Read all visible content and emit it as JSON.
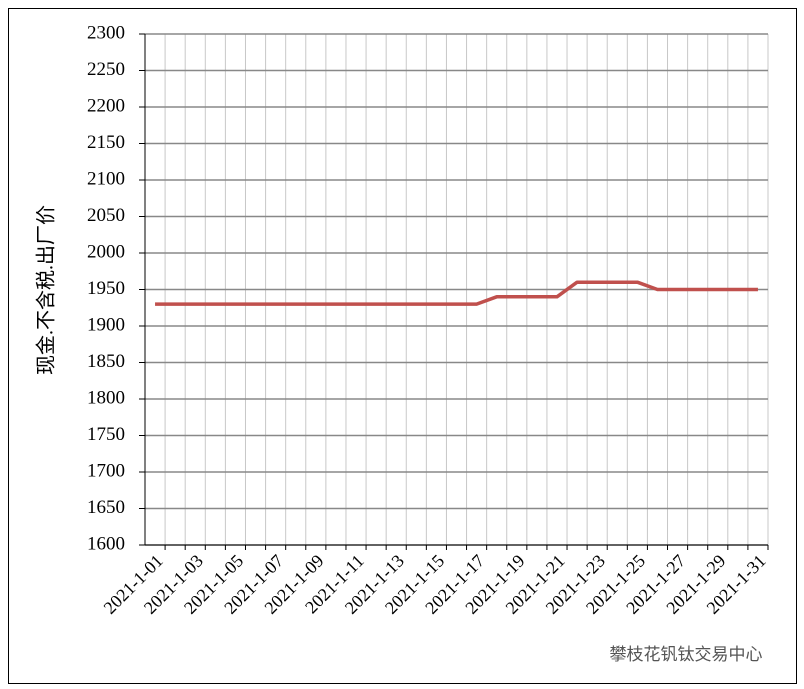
{
  "chart_data": {
    "type": "line",
    "y_label": "现金.不含税.出厂价",
    "watermark": "攀枝花钒钛交易中心",
    "categories": [
      "2021-1-01",
      null,
      "2021-1-03",
      null,
      "2021-1-05",
      null,
      "2021-1-07",
      null,
      "2021-1-09",
      null,
      "2021-1-11",
      null,
      "2021-1-13",
      null,
      "2021-1-15",
      null,
      "2021-1-17",
      null,
      "2021-1-19",
      null,
      "2021-1-21",
      null,
      "2021-1-23",
      null,
      "2021-1-25",
      null,
      "2021-1-27",
      null,
      "2021-1-29",
      null,
      "2021-1-31"
    ],
    "series": [
      {
        "color": "#c0504d",
        "values": [
          1930,
          1930,
          1930,
          1930,
          1930,
          1930,
          1930,
          1930,
          1930,
          1930,
          1930,
          1930,
          1930,
          1930,
          1930,
          1930,
          1930,
          1940,
          1940,
          1940,
          1940,
          1960,
          1960,
          1960,
          1960,
          1950,
          1950,
          1950,
          1950,
          1950,
          1950
        ]
      }
    ],
    "ylim": [
      1600,
      2300
    ],
    "yticks": [
      1600,
      1650,
      1700,
      1750,
      1800,
      1850,
      1900,
      1950,
      2000,
      2050,
      2100,
      2150,
      2200,
      2250,
      2300
    ],
    "grid": true
  }
}
